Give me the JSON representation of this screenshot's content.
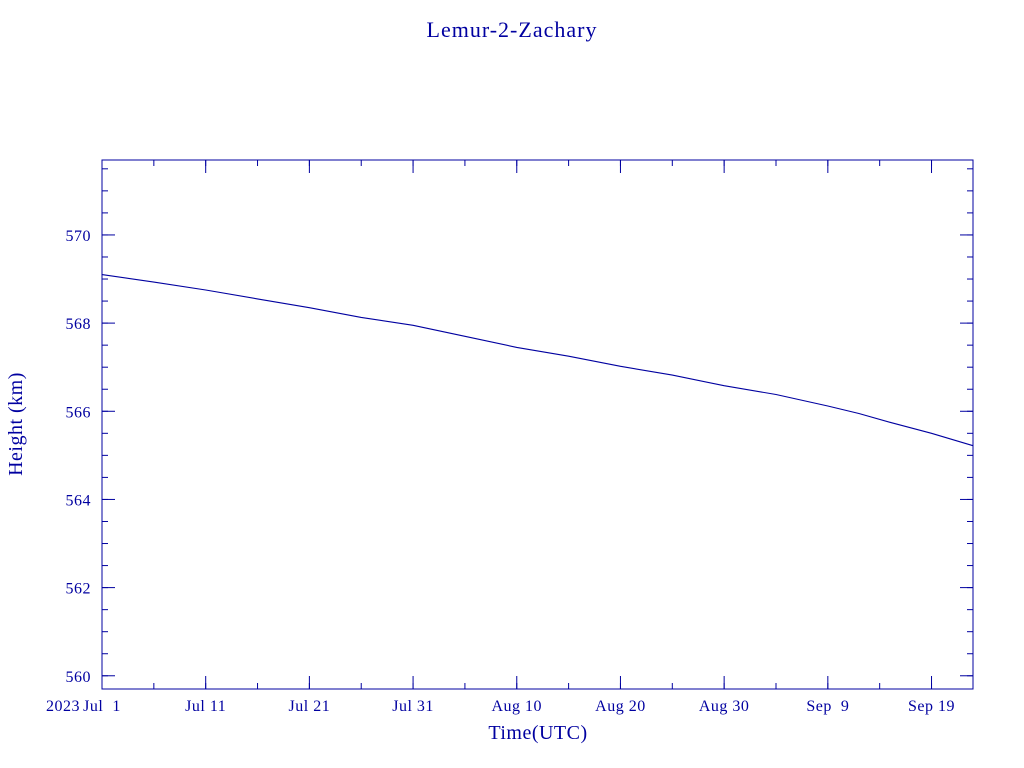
{
  "chart_data": {
    "type": "line",
    "title": "Lemur-2-Zachary",
    "xlabel": "Time(UTC)",
    "ylabel": "Height (km)",
    "year_label": "2023",
    "color": "#0000a0",
    "xlim": [
      "2023-07-01",
      "2023-09-23"
    ],
    "ylim": [
      559.7,
      571.7
    ],
    "x_ticks": [
      {
        "date": "2023-07-01",
        "label": "Jul  1"
      },
      {
        "date": "2023-07-11",
        "label": "Jul 11"
      },
      {
        "date": "2023-07-21",
        "label": "Jul 21"
      },
      {
        "date": "2023-07-31",
        "label": "Jul 31"
      },
      {
        "date": "2023-08-10",
        "label": "Aug 10"
      },
      {
        "date": "2023-08-20",
        "label": "Aug 20"
      },
      {
        "date": "2023-08-30",
        "label": "Aug 30"
      },
      {
        "date": "2023-09-09",
        "label": "Sep  9"
      },
      {
        "date": "2023-09-19",
        "label": "Sep 19"
      }
    ],
    "y_ticks": [
      {
        "value": 560,
        "label": "560"
      },
      {
        "value": 562,
        "label": "562"
      },
      {
        "value": 564,
        "label": "564"
      },
      {
        "value": 566,
        "label": "566"
      },
      {
        "value": 568,
        "label": "568"
      },
      {
        "value": 570,
        "label": "570"
      }
    ],
    "y_minor_step": 0.5,
    "x_minor_step_days": 5,
    "grid": false,
    "series": [
      {
        "x": [
          "2023-07-01",
          "2023-07-06",
          "2023-07-11",
          "2023-07-16",
          "2023-07-21",
          "2023-07-26",
          "2023-07-31",
          "2023-08-05",
          "2023-08-10",
          "2023-08-15",
          "2023-08-20",
          "2023-08-25",
          "2023-08-30",
          "2023-09-04",
          "2023-09-09",
          "2023-09-12",
          "2023-09-15",
          "2023-09-19",
          "2023-09-23"
        ],
        "y": [
          569.1,
          568.93,
          568.75,
          568.55,
          568.35,
          568.13,
          567.95,
          567.7,
          567.45,
          567.25,
          567.02,
          566.82,
          566.58,
          566.38,
          566.12,
          565.95,
          565.75,
          565.5,
          565.22
        ]
      }
    ]
  }
}
